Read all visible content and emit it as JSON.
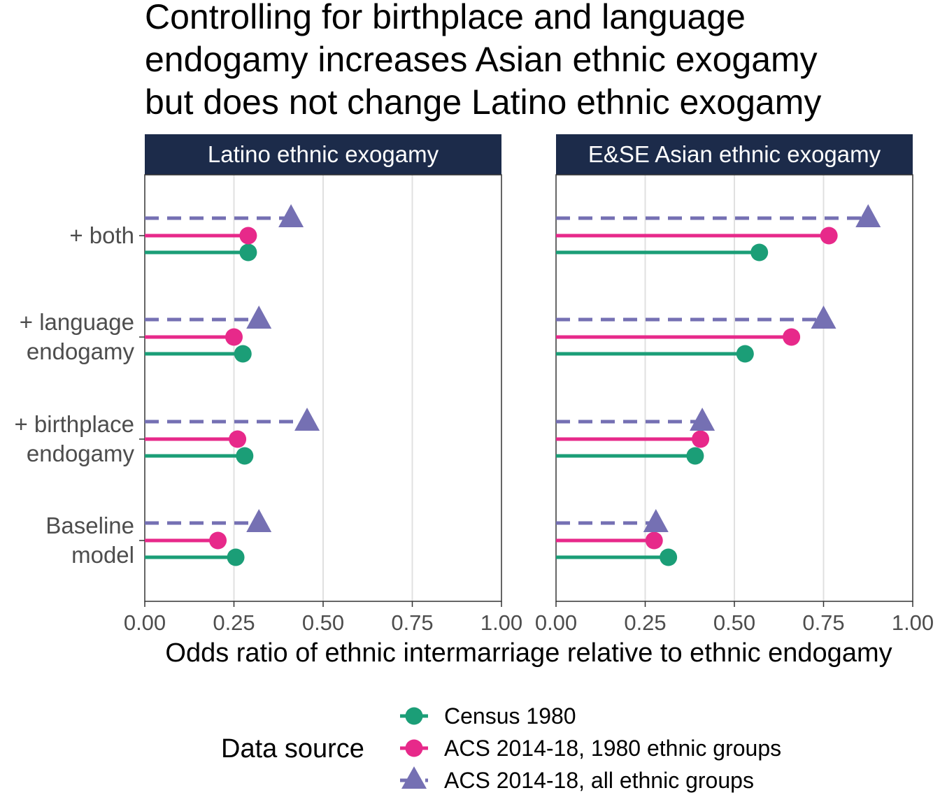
{
  "chart_data": {
    "type": "lollipop",
    "title_lines": [
      "Controlling for birthplace and language",
      "endogamy increases Asian ethnic exogamy",
      "but does not change Latino ethnic exogamy"
    ],
    "xlabel": "Odds ratio of ethnic intermarriage relative to ethnic endogamy",
    "xlim": [
      0,
      1
    ],
    "x_ticks": [
      "0.00",
      "0.25",
      "0.50",
      "0.75",
      "1.00"
    ],
    "categories": [
      {
        "label_lines": [
          "+ both"
        ]
      },
      {
        "label_lines": [
          "+ language",
          "endogamy"
        ]
      },
      {
        "label_lines": [
          "+ birthplace",
          "endogamy"
        ]
      },
      {
        "label_lines": [
          "Baseline",
          "model"
        ]
      }
    ],
    "legend": {
      "title": "Data source",
      "position": "bottom",
      "entries": [
        {
          "name": "Census 1980",
          "color": "#1b9e77",
          "shape": "circle",
          "line": "solid"
        },
        {
          "name": "ACS 2014-18, 1980 ethnic groups",
          "color": "#e7298a",
          "shape": "circle",
          "line": "solid"
        },
        {
          "name": "ACS 2014-18, all ethnic groups",
          "color": "#7570b3",
          "shape": "triangle",
          "line": "dashed"
        }
      ]
    },
    "panels": [
      {
        "title": "Latino ethnic exogamy",
        "series": [
          {
            "name": "Census 1980",
            "values": [
              0.29,
              0.275,
              0.28,
              0.255
            ]
          },
          {
            "name": "ACS 2014-18, 1980 ethnic groups",
            "values": [
              0.29,
              0.25,
              0.26,
              0.205
            ]
          },
          {
            "name": "ACS 2014-18, all ethnic groups",
            "values": [
              0.41,
              0.32,
              0.455,
              0.32
            ]
          }
        ]
      },
      {
        "title": "E&SE Asian ethnic exogamy",
        "series": [
          {
            "name": "Census 1980",
            "values": [
              0.57,
              0.53,
              0.39,
              0.315
            ]
          },
          {
            "name": "ACS 2014-18, 1980 ethnic groups",
            "values": [
              0.765,
              0.66,
              0.405,
              0.275
            ]
          },
          {
            "name": "ACS 2014-18, all ethnic groups",
            "values": [
              0.875,
              0.75,
              0.41,
              0.28
            ]
          }
        ]
      }
    ]
  }
}
